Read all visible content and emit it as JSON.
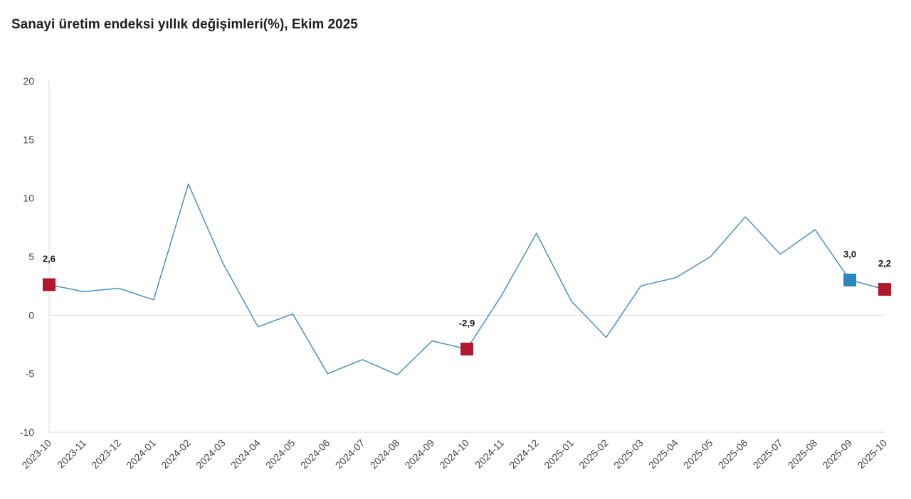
{
  "title": "Sanayi üretim endeksi yıllık değişimleri(%), Ekim 2025",
  "chart_data": {
    "type": "line",
    "title": "Sanayi üretim endeksi yıllık değişimleri(%), Ekim 2025",
    "xlabel": "",
    "ylabel": "",
    "ylim": [
      -10,
      20
    ],
    "yticks": [
      -10,
      -5,
      0,
      5,
      10,
      15,
      20
    ],
    "grid": false,
    "categories": [
      "2023-10",
      "2023-11",
      "2023-12",
      "2024-01",
      "2024-02",
      "2024-03",
      "2024-04",
      "2024-05",
      "2024-06",
      "2024-07",
      "2024-08",
      "2024-09",
      "2024-10",
      "2024-11",
      "2024-12",
      "2025-01",
      "2025-02",
      "2025-03",
      "2025-04",
      "2025-05",
      "2025-06",
      "2025-07",
      "2025-08",
      "2025-09",
      "2025-10"
    ],
    "series": [
      {
        "values": [
          2.6,
          2.0,
          2.3,
          1.3,
          11.2,
          4.4,
          -1.0,
          0.1,
          -5.0,
          -3.8,
          -5.1,
          -2.2,
          -2.9,
          1.7,
          7.0,
          1.2,
          -1.9,
          2.5,
          3.2,
          5.0,
          8.4,
          5.2,
          7.3,
          3.0,
          2.2
        ],
        "color": "#4a90c4"
      }
    ],
    "highlights": [
      {
        "category": "2023-10",
        "value": 2.6,
        "label": "2,6",
        "color": "#b2182b"
      },
      {
        "category": "2024-10",
        "value": -2.9,
        "label": "-2,9",
        "color": "#b2182b"
      },
      {
        "category": "2025-09",
        "value": 3.0,
        "label": "3,0",
        "color": "#2e86c1"
      },
      {
        "category": "2025-10",
        "value": 2.2,
        "label": "2,2",
        "color": "#b2182b"
      }
    ]
  }
}
